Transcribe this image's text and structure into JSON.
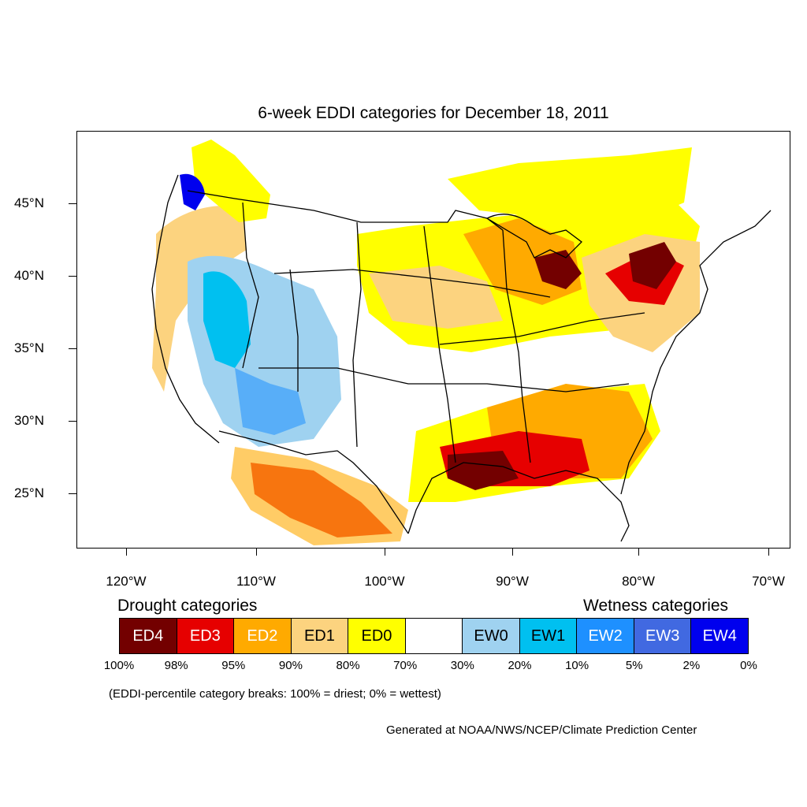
{
  "title": "6-week EDDI categories for December 18, 2011",
  "lat_labels": [
    "45°N",
    "40°N",
    "35°N",
    "30°N",
    "25°N"
  ],
  "lon_labels": [
    "120°W",
    "110°W",
    "100°W",
    "90°W",
    "80°W",
    "70°W"
  ],
  "legend": {
    "drought_heading": "Drought categories",
    "wetness_heading": "Wetness categories",
    "categories": [
      {
        "label": "ED4",
        "color": "#730000",
        "text_color": "#ffffff"
      },
      {
        "label": "ED3",
        "color": "#e60000",
        "text_color": "#ffffff"
      },
      {
        "label": "ED2",
        "color": "#ffaa00",
        "text_color": "#ffffff"
      },
      {
        "label": "ED1",
        "color": "#fcd37f",
        "text_color": "#000000"
      },
      {
        "label": "ED0",
        "color": "#ffff00",
        "text_color": "#000000"
      },
      {
        "label": "",
        "color": "#ffffff",
        "text_color": "#000000"
      },
      {
        "label": "EW0",
        "color": "#9fd2f0",
        "text_color": "#000000"
      },
      {
        "label": "EW1",
        "color": "#00c0f0",
        "text_color": "#000000"
      },
      {
        "label": "EW2",
        "color": "#1e90ff",
        "text_color": "#ffffff"
      },
      {
        "label": "EW3",
        "color": "#4169e1",
        "text_color": "#ffffff"
      },
      {
        "label": "EW4",
        "color": "#0000ee",
        "text_color": "#ffffff"
      }
    ],
    "percentiles": [
      "100%",
      "98%",
      "95%",
      "90%",
      "80%",
      "70%",
      "30%",
      "20%",
      "10%",
      "5%",
      "2%",
      "0%"
    ]
  },
  "note": "(EDDI-percentile category breaks: 100% = driest; 0% = wettest)",
  "credit": "Generated at NOAA/NWS/NCEP/Climate Prediction Center"
}
